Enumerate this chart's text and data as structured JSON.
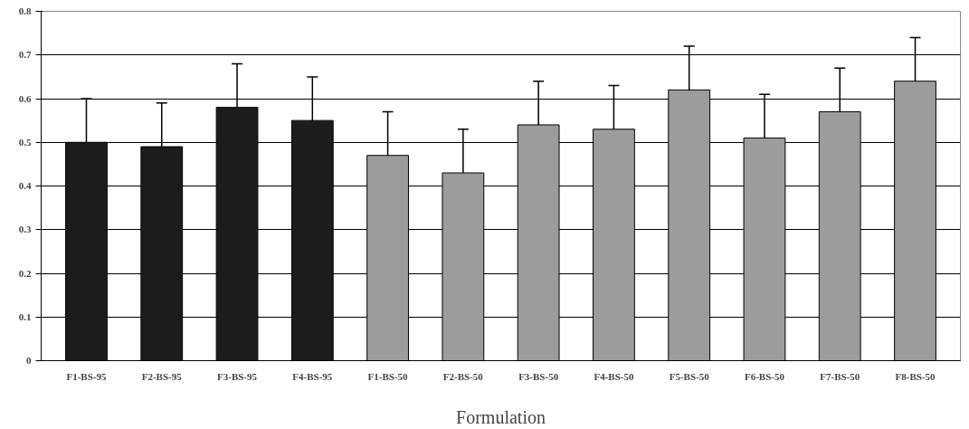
{
  "chart_data": {
    "type": "bar",
    "xlabel": "Formulation",
    "categories": [
      "F1-BS-95",
      "F2-BS-95",
      "F3-BS-95",
      "F4-BS-95",
      "F1-BS-50",
      "F2-BS-50",
      "F3-BS-50",
      "F4-BS-50",
      "F5-BS-50",
      "F6-BS-50",
      "F7-BS-50",
      "F8-BS-50"
    ],
    "values": [
      0.5,
      0.49,
      0.58,
      0.55,
      0.47,
      0.43,
      0.54,
      0.53,
      0.62,
      0.51,
      0.57,
      0.64
    ],
    "colors": [
      "#1c1c1c",
      "#1c1c1c",
      "#1c1c1c",
      "#1c1c1c",
      "#9c9c9c",
      "#9c9c9c",
      "#9c9c9c",
      "#9c9c9c",
      "#9c9c9c",
      "#9c9c9c",
      "#9c9c9c",
      "#9c9c9c"
    ],
    "errors": [
      0.1,
      0.1,
      0.1,
      0.1,
      0.1,
      0.1,
      0.1,
      0.1,
      0.1,
      0.1,
      0.1,
      0.1
    ],
    "ylim": [
      0,
      0.8
    ],
    "yticks": [
      0,
      0.1,
      0.2,
      0.3,
      0.4,
      0.5,
      0.6,
      0.7,
      0.8
    ],
    "grid": "y"
  }
}
